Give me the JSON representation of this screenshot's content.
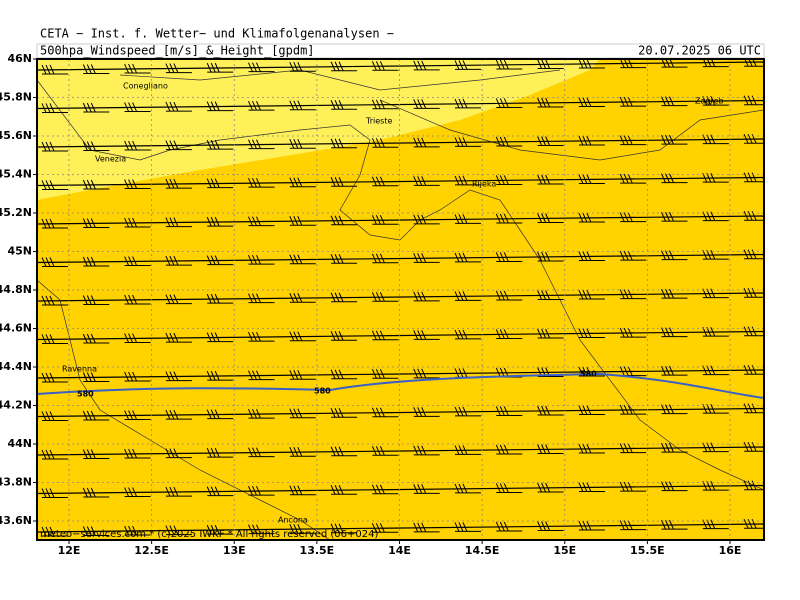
{
  "header": {
    "title": "CETA − Inst. f. Wetter− und Klimafolgenanalysen −",
    "subtitle": "500hpa_Windspeed_[m/s]_&_Height_[gpdm]",
    "valid_time": "20.07.2025 06 UTC"
  },
  "footer": "meteo−services.com * (c)2025 IWKF * All rights reserved (06+024)",
  "map": {
    "lat_ticks": [
      {
        "value": 46,
        "label": "46N"
      },
      {
        "value": 45.8,
        "label": "45.8N"
      },
      {
        "value": 45.6,
        "label": "45.6N"
      },
      {
        "value": 45.4,
        "label": "45.4N"
      },
      {
        "value": 45.2,
        "label": "45.2N"
      },
      {
        "value": 45,
        "label": "45N"
      },
      {
        "value": 44.8,
        "label": "44.8N"
      },
      {
        "value": 44.6,
        "label": "44.6N"
      },
      {
        "value": 44.4,
        "label": "44.4N"
      },
      {
        "value": 44.2,
        "label": "44.2N"
      },
      {
        "value": 44,
        "label": "44N"
      },
      {
        "value": 43.8,
        "label": "43.8N"
      },
      {
        "value": 43.6,
        "label": "43.6N"
      }
    ],
    "lon_ticks": [
      {
        "value": 12,
        "label": "12E"
      },
      {
        "value": 12.5,
        "label": "12.5E"
      },
      {
        "value": 13,
        "label": "13E"
      },
      {
        "value": 13.5,
        "label": "13.5E"
      },
      {
        "value": 14,
        "label": "14E"
      },
      {
        "value": 14.5,
        "label": "14.5E"
      },
      {
        "value": 15,
        "label": "15E"
      },
      {
        "value": 15.5,
        "label": "15.5E"
      },
      {
        "value": 16,
        "label": "16E"
      }
    ],
    "places": [
      "Conegliano",
      "Venezia",
      "Trieste",
      "Rijeka",
      "Zagreb",
      "Ravenna",
      "Ancona"
    ],
    "contour_labels": [
      "580",
      "580",
      "580"
    ]
  }
}
